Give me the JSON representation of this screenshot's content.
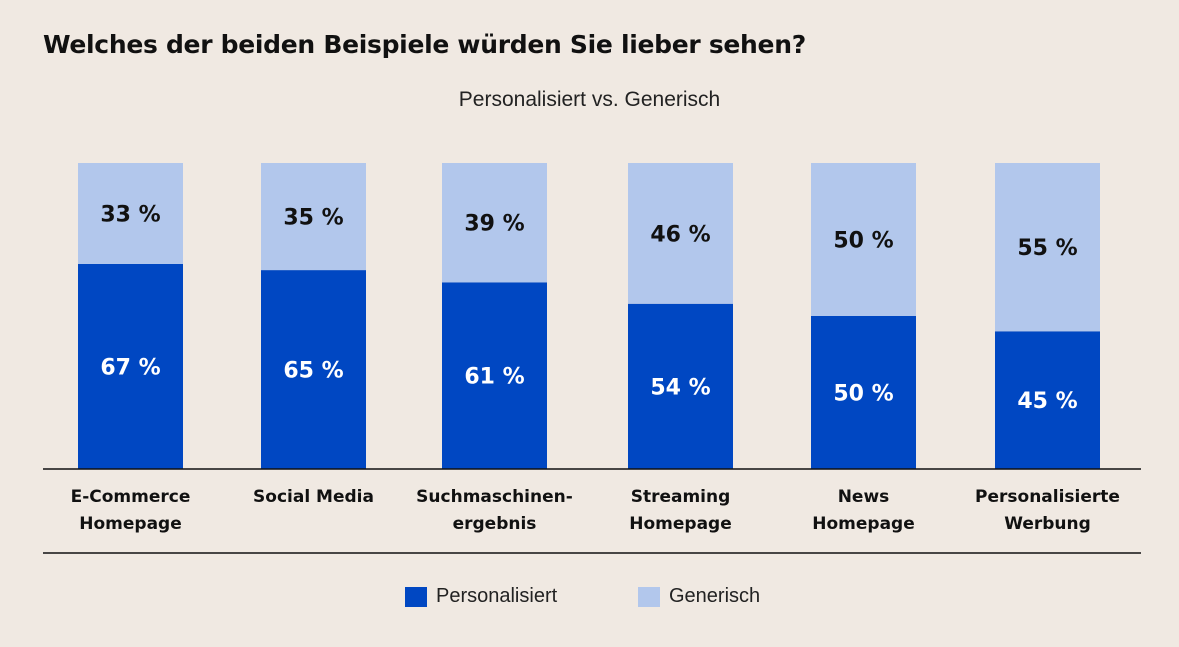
{
  "chart_data": {
    "type": "bar",
    "stacked": true,
    "title": "Welches der beiden Beispiele würden Sie lieber sehen?",
    "subtitle": "Personalisiert vs. Generisch",
    "categories": [
      "E-Commerce\nHomepage",
      "Social Media",
      "Suchmaschinen-\nergebnis",
      "Streaming\nHomepage",
      "News\nHomepage",
      "Personalisierte\nWerbung"
    ],
    "series": [
      {
        "name": "Personalisiert",
        "color": "#0047c2",
        "values": [
          67,
          65,
          61,
          54,
          50,
          45
        ]
      },
      {
        "name": "Generisch",
        "color": "#b2c7ec",
        "values": [
          33,
          35,
          39,
          46,
          50,
          55
        ]
      }
    ],
    "value_suffix": " %",
    "ylim": [
      0,
      100
    ],
    "grid": false,
    "legend": "bottom"
  }
}
